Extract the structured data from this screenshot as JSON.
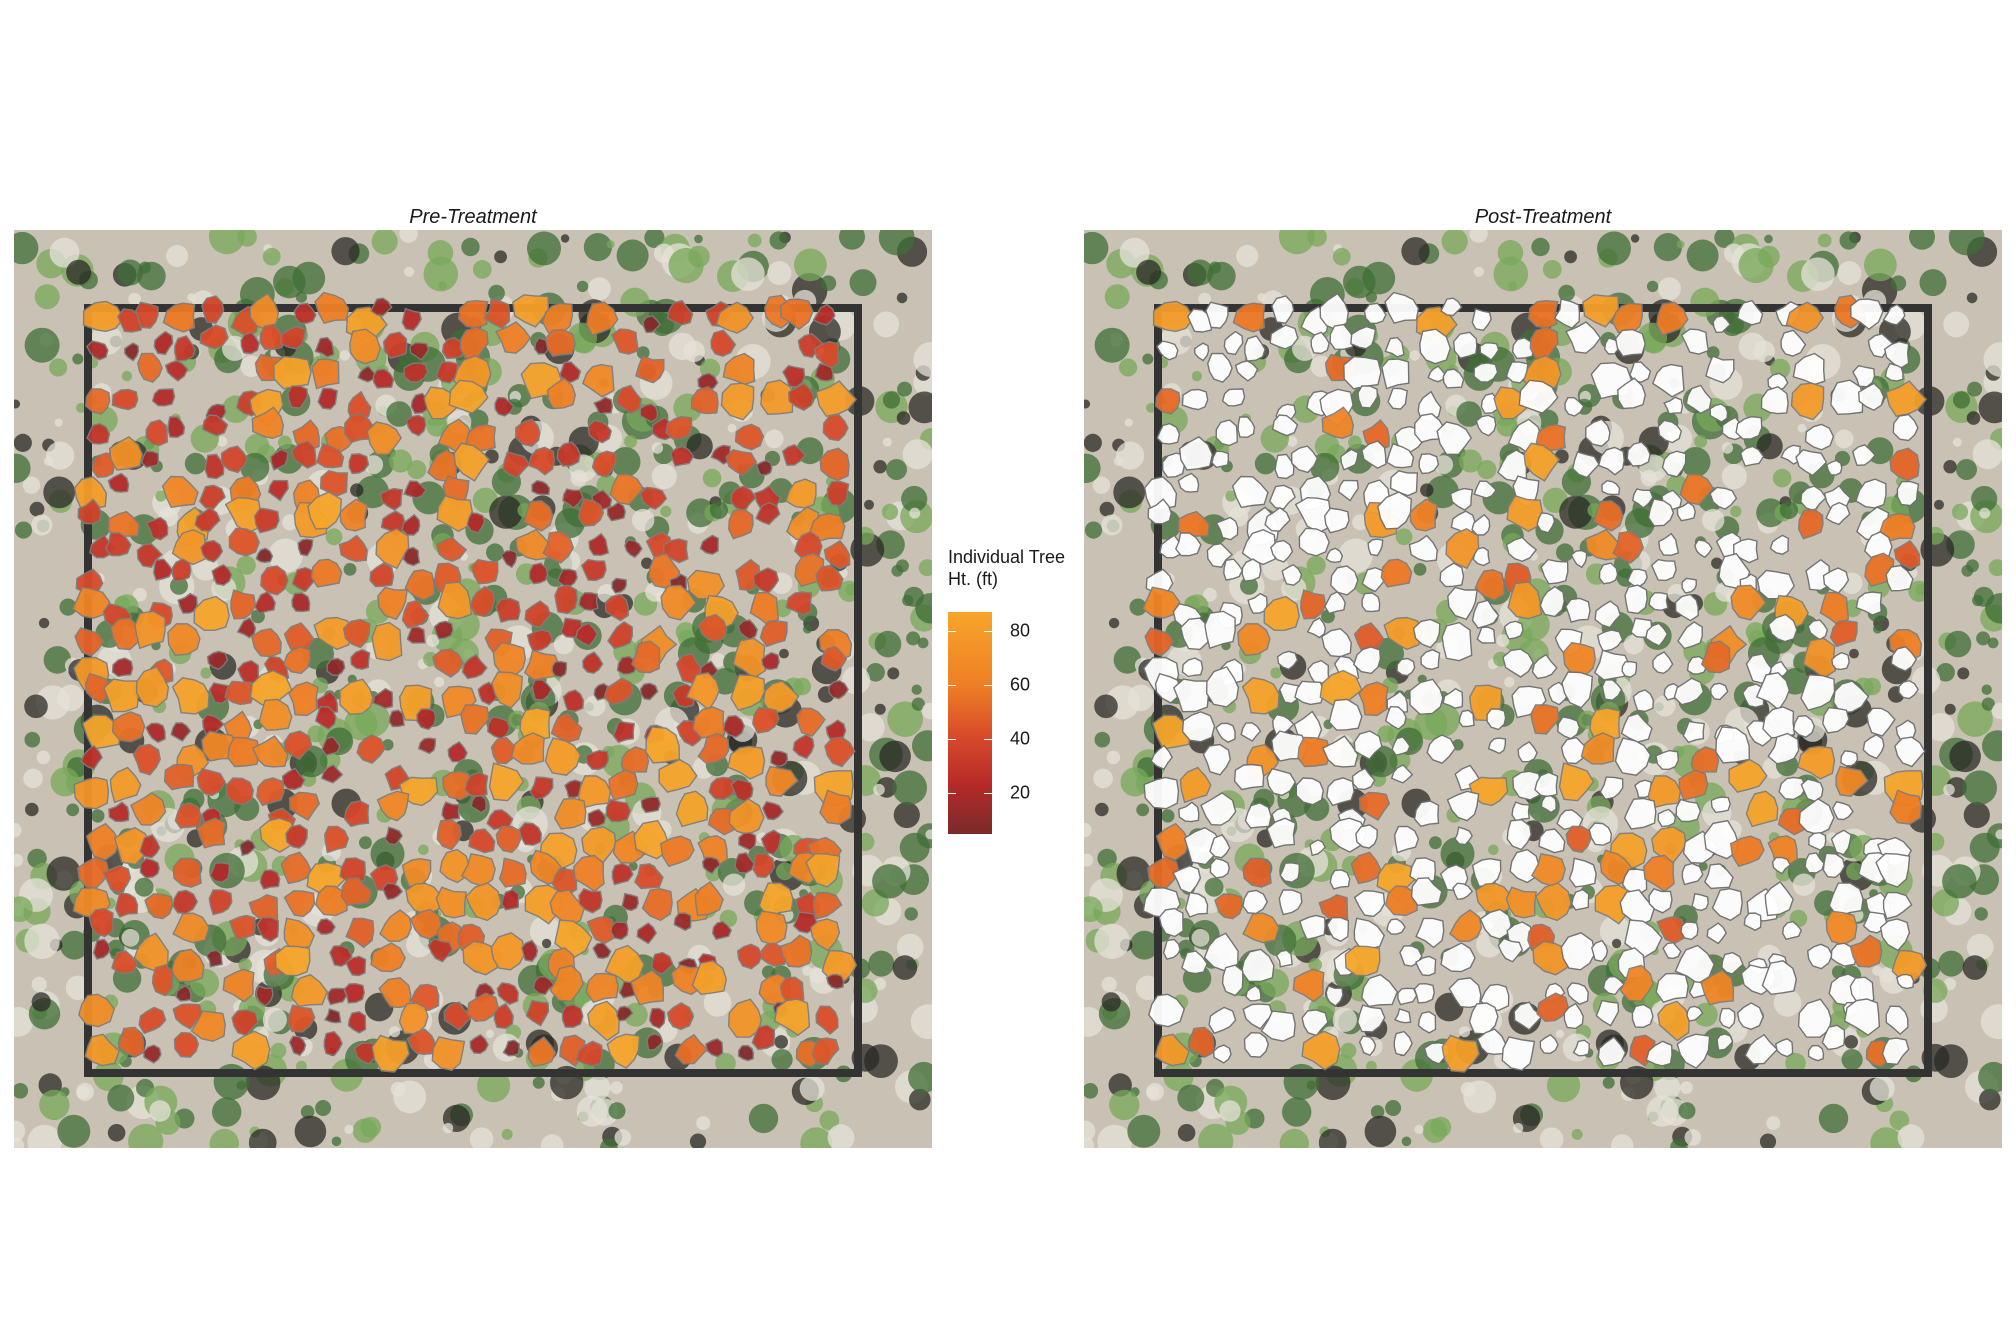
{
  "panels": [
    {
      "title": "Pre-Treatment",
      "treatment": "pre"
    },
    {
      "title": "Post-Treatment",
      "treatment": "post"
    }
  ],
  "legend": {
    "title": "Individual Tree\nHt. (ft)",
    "ticks": [
      80,
      60,
      40,
      20
    ],
    "range": [
      5,
      87
    ],
    "colors": [
      "#7a2a2a",
      "#b52a28",
      "#d84a2a",
      "#ee7d25",
      "#f6a62a"
    ]
  },
  "colors": {
    "background_ground": "#c9c2b4",
    "vegetation": "#5f9a4a",
    "plot_boundary": "#333333",
    "removed_crown": "#ffffff"
  }
}
